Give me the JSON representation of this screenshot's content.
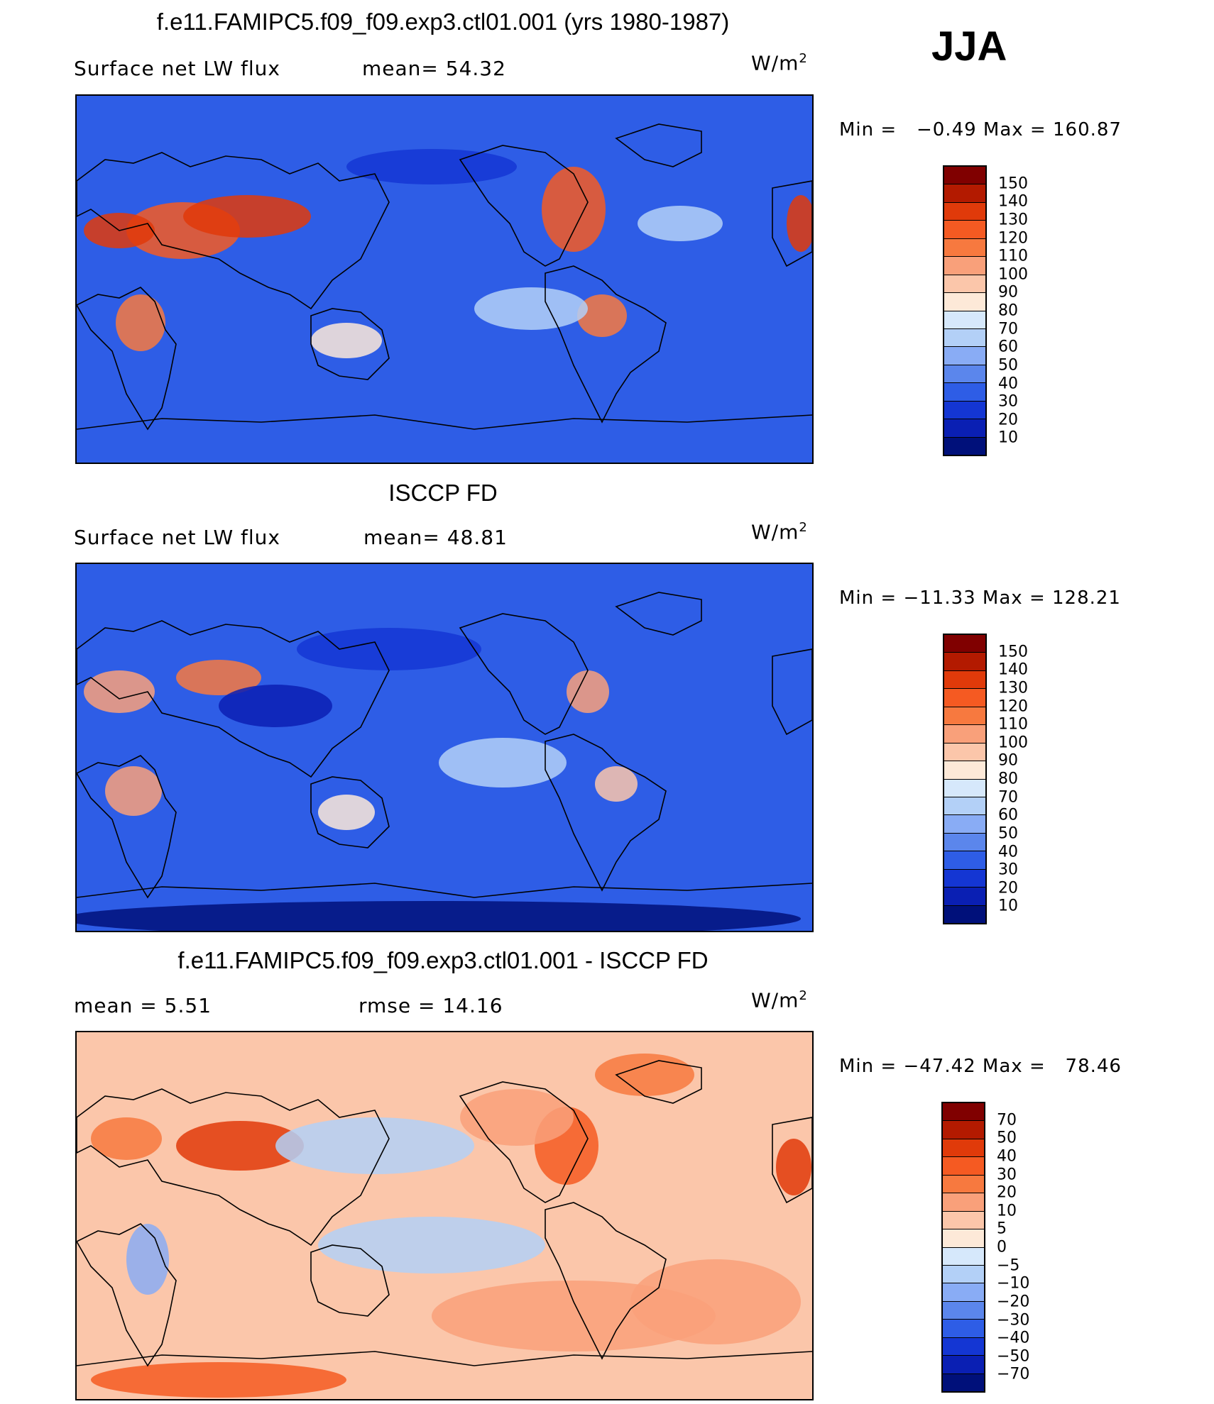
{
  "season": "JJA",
  "panels": [
    {
      "title": "f.e11.FAMIPC5.f09_f09.exp3.ctl01.001 (yrs 1980-1987)",
      "left_label": "Surface net LW flux",
      "stat1": "mean=  54.32",
      "stat2": "",
      "units": "W/m",
      "units_sup": "2",
      "minmax": "Min =   −0.49 Max = 160.87"
    },
    {
      "title": "ISCCP FD",
      "left_label": "Surface net LW flux",
      "stat1": "mean=  48.81",
      "stat2": "",
      "units": "W/m",
      "units_sup": "2",
      "minmax": "Min = −11.33 Max = 128.21"
    },
    {
      "title": "f.e11.FAMIPC5.f09_f09.exp3.ctl01.001 - ISCCP FD",
      "left_label": "",
      "stat1": "mean =    5.51",
      "stat2": "rmse =   14.16",
      "units": "W/m",
      "units_sup": "2",
      "minmax": "Min = −47.42 Max =   78.46"
    }
  ],
  "chart_data": [
    {
      "type": "heatmap",
      "title": "f.e11.FAMIPC5.f09_f09.exp3.ctl01.001 (yrs 1980-1987)",
      "variable": "Surface net LW flux",
      "units": "W/m2",
      "mean": 54.32,
      "min": -0.49,
      "max": 160.87,
      "colorbar_levels": [
        "150",
        "140",
        "130",
        "120",
        "110",
        "100",
        "90",
        "80",
        "70",
        "60",
        "50",
        "40",
        "30",
        "20",
        "10"
      ],
      "colors": [
        "#800000",
        "#b31a00",
        "#e03a0a",
        "#f55a22",
        "#f7793f",
        "#f9a07a",
        "#fbc6aa",
        "#fde9d8",
        "#d6e8fb",
        "#b3d0f7",
        "#89acf5",
        "#5b86ec",
        "#2e5de6",
        "#1436d3",
        "#0a1fb3",
        "#00107a"
      ]
    },
    {
      "type": "heatmap",
      "title": "ISCCP FD",
      "variable": "Surface net LW flux",
      "units": "W/m2",
      "mean": 48.81,
      "min": -11.33,
      "max": 128.21,
      "colorbar_levels": [
        "150",
        "140",
        "130",
        "120",
        "110",
        "100",
        "90",
        "80",
        "70",
        "60",
        "50",
        "40",
        "30",
        "20",
        "10"
      ],
      "colors": [
        "#800000",
        "#b31a00",
        "#e03a0a",
        "#f55a22",
        "#f7793f",
        "#f9a07a",
        "#fbc6aa",
        "#fde9d8",
        "#d6e8fb",
        "#b3d0f7",
        "#89acf5",
        "#5b86ec",
        "#2e5de6",
        "#1436d3",
        "#0a1fb3",
        "#00107a"
      ]
    },
    {
      "type": "heatmap",
      "title": "f.e11.FAMIPC5.f09_f09.exp3.ctl01.001 - ISCCP FD",
      "units": "W/m2",
      "mean": 5.51,
      "rmse": 14.16,
      "min": -47.42,
      "max": 78.46,
      "colorbar_levels": [
        "70",
        "50",
        "40",
        "30",
        "20",
        "10",
        "5",
        "0",
        "−5",
        "−10",
        "−20",
        "−30",
        "−40",
        "−50",
        "−70"
      ],
      "colors": [
        "#800000",
        "#b31a00",
        "#e03a0a",
        "#f55a22",
        "#f7793f",
        "#f9a07a",
        "#fbc6aa",
        "#fde9d8",
        "#d6e8fb",
        "#b3d0f7",
        "#89acf5",
        "#5b86ec",
        "#2e5de6",
        "#1436d3",
        "#0a1fb3",
        "#00107a"
      ]
    }
  ]
}
